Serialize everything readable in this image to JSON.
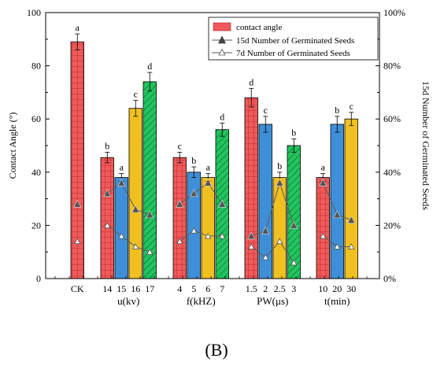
{
  "panel_label": "(B)",
  "colors": {
    "red": "#f05a5a",
    "blue": "#3f8fd8",
    "yellow": "#f0c020",
    "green": "#22c45e",
    "line": "#5a5a5a"
  },
  "chart_data": {
    "type": "bar",
    "ylabel": "Contact Angle (°)",
    "y2label": "15d Number of Germinated Seeds",
    "ylim": [
      0,
      100
    ],
    "yticks": [
      "0",
      "20",
      "40",
      "60",
      "80",
      "100"
    ],
    "y2lim": [
      0,
      1
    ],
    "y2ticks": [
      "0%",
      "20%",
      "40%",
      "60%",
      "80%",
      "100%"
    ],
    "legend_position": "top-right",
    "legend": {
      "bars": "contact angle",
      "line15": "15d Number of Germinated Seeds",
      "line7": "7d Number of Germinated Seeds"
    },
    "groups": [
      {
        "label": "",
        "bars": [
          {
            "tick": "CK",
            "value": 89,
            "err": 3,
            "letter": "a",
            "color": "red",
            "pattern": "grid",
            "s15": 0.28,
            "s7": 0.14
          }
        ]
      },
      {
        "label": "u(kv)",
        "bars": [
          {
            "tick": "14",
            "value": 45.5,
            "err": 2,
            "letter": "b",
            "color": "red",
            "pattern": "grid",
            "s15": 0.32,
            "s7": 0.2
          },
          {
            "tick": "15",
            "value": 38,
            "err": 1.5,
            "letter": "a",
            "color": "blue",
            "pattern": "none",
            "s15": 0.36,
            "s7": 0.16
          },
          {
            "tick": "16",
            "value": 64,
            "err": 3,
            "letter": "c",
            "color": "yellow",
            "pattern": "none",
            "s15": 0.26,
            "s7": 0.12
          },
          {
            "tick": "17",
            "value": 74,
            "err": 3.5,
            "letter": "d",
            "color": "green",
            "pattern": "hatch",
            "s15": 0.24,
            "s7": 0.1
          }
        ]
      },
      {
        "label": "f(kHZ)",
        "bars": [
          {
            "tick": "4",
            "value": 45.5,
            "err": 2,
            "letter": "c",
            "color": "red",
            "pattern": "grid",
            "s15": 0.28,
            "s7": 0.14
          },
          {
            "tick": "5",
            "value": 40,
            "err": 2,
            "letter": "b",
            "color": "blue",
            "pattern": "none",
            "s15": 0.32,
            "s7": 0.18
          },
          {
            "tick": "6",
            "value": 38,
            "err": 1.5,
            "letter": "a",
            "color": "yellow",
            "pattern": "none",
            "s15": 0.36,
            "s7": 0.16
          },
          {
            "tick": "7",
            "value": 56,
            "err": 2.5,
            "letter": "d",
            "color": "green",
            "pattern": "hatch",
            "s15": 0.28,
            "s7": 0.16
          }
        ]
      },
      {
        "label": "PW(μs)",
        "bars": [
          {
            "tick": "1.5",
            "value": 68,
            "err": 3.5,
            "letter": "d",
            "color": "red",
            "pattern": "grid",
            "s15": 0.16,
            "s7": 0.12
          },
          {
            "tick": "2",
            "value": 58,
            "err": 3,
            "letter": "c",
            "color": "blue",
            "pattern": "none",
            "s15": 0.18,
            "s7": 0.08
          },
          {
            "tick": "2.5",
            "value": 38,
            "err": 2,
            "letter": "b",
            "color": "yellow",
            "pattern": "none",
            "s15": 0.36,
            "s7": 0.14
          },
          {
            "tick": "3",
            "value": 50,
            "err": 2.5,
            "letter": "b",
            "color": "green",
            "pattern": "hatch",
            "s15": 0.2,
            "s7": 0.06
          }
        ]
      },
      {
        "label": "t(min)",
        "bars": [
          {
            "tick": "10",
            "value": 38,
            "err": 1.5,
            "letter": "a",
            "color": "red",
            "pattern": "grid",
            "s15": 0.36,
            "s7": 0.16
          },
          {
            "tick": "20",
            "value": 58,
            "err": 3,
            "letter": "b",
            "color": "blue",
            "pattern": "none",
            "s15": 0.24,
            "s7": 0.12
          },
          {
            "tick": "30",
            "value": 60,
            "err": 2.5,
            "letter": "c",
            "color": "yellow",
            "pattern": "none",
            "s15": 0.22,
            "s7": 0.12
          }
        ]
      }
    ]
  }
}
